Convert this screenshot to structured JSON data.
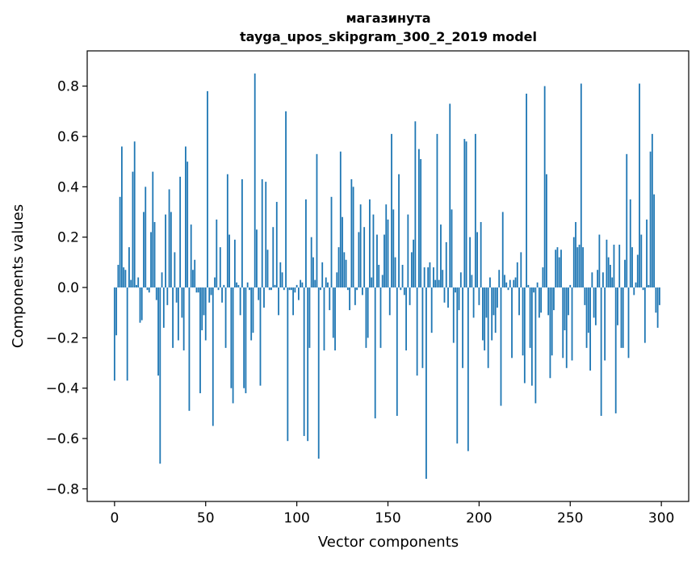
{
  "chart_data": {
    "type": "bar",
    "title_line1": "магазинута",
    "title_line2": "tayga_upos_skipgram_300_2_2019 model",
    "xlabel": "Vector components",
    "ylabel": "Components values",
    "xlim": [
      -15,
      315
    ],
    "ylim": [
      -0.85,
      0.94
    ],
    "x_ticks": [
      0,
      50,
      100,
      150,
      200,
      250,
      300
    ],
    "x_tick_labels": [
      "0",
      "50",
      "100",
      "150",
      "200",
      "250",
      "300"
    ],
    "y_ticks": [
      -0.8,
      -0.6,
      -0.4,
      -0.2,
      0.0,
      0.2,
      0.4,
      0.6,
      0.8
    ],
    "y_tick_labels": [
      "−0.8",
      "−0.6",
      "−0.4",
      "−0.2",
      "0.0",
      "0.2",
      "0.4",
      "0.6",
      "0.8"
    ],
    "bar_color": "#1f77b4",
    "grid": false,
    "values": [
      -0.37,
      -0.19,
      0.09,
      0.36,
      0.56,
      0.08,
      0.07,
      -0.37,
      0.16,
      0.03,
      0.46,
      0.58,
      0.01,
      0.04,
      -0.14,
      -0.13,
      0.3,
      0.4,
      -0.01,
      -0.02,
      0.22,
      0.46,
      0.26,
      -0.05,
      -0.35,
      -0.7,
      0.06,
      -0.16,
      0.29,
      -0.07,
      0.39,
      0.3,
      -0.24,
      0.14,
      -0.06,
      -0.21,
      0.44,
      -0.12,
      -0.25,
      0.56,
      0.5,
      -0.49,
      0.25,
      0.07,
      0.11,
      -0.02,
      -0.02,
      -0.42,
      -0.17,
      -0.11,
      -0.21,
      0.78,
      -0.06,
      -0.03,
      -0.55,
      0.04,
      0.27,
      -0.01,
      0.16,
      -0.06,
      0.01,
      -0.24,
      0.45,
      0.21,
      -0.4,
      -0.46,
      0.19,
      0.02,
      0.01,
      -0.11,
      0.43,
      -0.4,
      -0.42,
      0.02,
      -0.01,
      -0.21,
      -0.18,
      0.85,
      0.23,
      -0.05,
      -0.39,
      0.43,
      -0.08,
      0.42,
      0.15,
      -0.01,
      -0.01,
      0.24,
      0.01,
      0.34,
      -0.11,
      0.1,
      0.06,
      -0.01,
      0.7,
      -0.61,
      -0.01,
      -0.01,
      -0.11,
      -0.02,
      0.01,
      -0.05,
      0.03,
      0.02,
      -0.59,
      0.35,
      -0.61,
      -0.24,
      0.2,
      0.12,
      0.03,
      0.53,
      -0.68,
      -0.01,
      0.1,
      -0.25,
      0.04,
      0.02,
      -0.09,
      0.36,
      -0.2,
      -0.25,
      0.06,
      0.16,
      0.54,
      0.28,
      0.14,
      0.11,
      -0.01,
      -0.09,
      0.43,
      0.4,
      -0.07,
      -0.01,
      0.22,
      0.33,
      -0.03,
      0.24,
      -0.24,
      -0.2,
      0.35,
      0.04,
      0.29,
      -0.52,
      0.21,
      0.09,
      -0.24,
      0.05,
      0.21,
      0.33,
      0.27,
      -0.11,
      0.61,
      0.31,
      0.12,
      -0.51,
      0.45,
      -0.01,
      0.09,
      -0.03,
      -0.25,
      0.29,
      -0.07,
      0.14,
      0.19,
      0.66,
      -0.35,
      0.55,
      0.51,
      -0.32,
      0.08,
      -0.76,
      0.08,
      0.1,
      -0.18,
      0.08,
      0.03,
      0.61,
      0.03,
      0.25,
      0.07,
      -0.06,
      0.18,
      -0.08,
      0.73,
      0.31,
      -0.22,
      -0.02,
      -0.62,
      -0.09,
      0.06,
      -0.32,
      0.59,
      0.58,
      -0.65,
      0.2,
      0.05,
      -0.12,
      0.61,
      0.22,
      -0.07,
      0.26,
      -0.21,
      -0.25,
      -0.12,
      -0.32,
      0.04,
      -0.21,
      -0.11,
      -0.18,
      -0.08,
      0.07,
      -0.47,
      0.3,
      0.05,
      0.02,
      -0.01,
      0.03,
      -0.28,
      0.03,
      0.04,
      0.1,
      -0.11,
      0.14,
      -0.27,
      -0.38,
      0.77,
      0.01,
      -0.24,
      -0.39,
      -0.02,
      -0.46,
      0.02,
      -0.12,
      -0.1,
      0.08,
      0.8,
      0.45,
      -0.11,
      -0.36,
      -0.27,
      -0.09,
      0.15,
      0.16,
      0.12,
      0.15,
      -0.28,
      -0.17,
      -0.32,
      -0.11,
      0.01,
      -0.29,
      0.2,
      0.26,
      0.16,
      0.17,
      0.81,
      0.16,
      -0.07,
      -0.24,
      -0.18,
      -0.33,
      0.06,
      -0.12,
      -0.15,
      0.07,
      0.21,
      -0.51,
      0.06,
      -0.29,
      0.19,
      0.12,
      0.09,
      0.04,
      0.17,
      -0.5,
      -0.15,
      0.17,
      -0.24,
      -0.24,
      0.11,
      0.53,
      -0.28,
      0.35,
      0.16,
      -0.03,
      0.02,
      0.13,
      0.81,
      0.21,
      -0.01,
      -0.22,
      0.27,
      0.01,
      0.54,
      0.61,
      0.37,
      -0.1,
      -0.16,
      -0.07
    ]
  }
}
